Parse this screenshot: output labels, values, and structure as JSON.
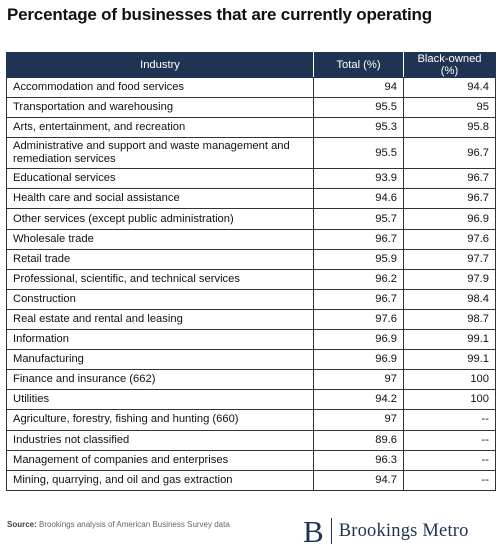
{
  "title": "Percentage of businesses that are currently operating",
  "chart_data": {
    "type": "table",
    "title": "Percentage of businesses that are currently operating",
    "columns": [
      "Industry",
      "Total (%)",
      "Black-owned (%)"
    ],
    "rows": [
      {
        "industry": "Accommodation and food services",
        "total": "94",
        "black_owned": "94.4"
      },
      {
        "industry": "Transportation and warehousing",
        "total": "95.5",
        "black_owned": "95"
      },
      {
        "industry": "Arts, entertainment, and recreation",
        "total": "95.3",
        "black_owned": "95.8"
      },
      {
        "industry": "Administrative and support and waste management and remediation services",
        "total": "95.5",
        "black_owned": "96.7"
      },
      {
        "industry": "Educational services",
        "total": "93.9",
        "black_owned": "96.7"
      },
      {
        "industry": "Health care and social assistance",
        "total": "94.6",
        "black_owned": "96.7"
      },
      {
        "industry": "Other services (except public administration)",
        "total": "95.7",
        "black_owned": "96.9"
      },
      {
        "industry": "Wholesale trade",
        "total": "96.7",
        "black_owned": "97.6"
      },
      {
        "industry": "Retail trade",
        "total": "95.9",
        "black_owned": "97.7"
      },
      {
        "industry": "Professional, scientific, and technical services",
        "total": "96.2",
        "black_owned": "97.9"
      },
      {
        "industry": "Construction",
        "total": "96.7",
        "black_owned": "98.4"
      },
      {
        "industry": "Real estate and rental and leasing",
        "total": "97.6",
        "black_owned": "98.7"
      },
      {
        "industry": "Information",
        "total": "96.9",
        "black_owned": "99.1"
      },
      {
        "industry": "Manufacturing",
        "total": "96.9",
        "black_owned": "99.1"
      },
      {
        "industry": "Finance and insurance (662)",
        "total": "97",
        "black_owned": "100"
      },
      {
        "industry": "Utilities",
        "total": "94.2",
        "black_owned": "100"
      },
      {
        "industry": "Agriculture, forestry, fishing and hunting (660)",
        "total": "97",
        "black_owned": "--"
      },
      {
        "industry": "Industries not classified",
        "total": "89.6",
        "black_owned": "--"
      },
      {
        "industry": "Management of companies and enterprises",
        "total": "96.3",
        "black_owned": "--"
      },
      {
        "industry": "Mining, quarrying, and oil and gas extraction",
        "total": "94.7",
        "black_owned": "--"
      }
    ]
  },
  "footer": {
    "source_label": "Source:",
    "source_text": "Brookings analysis of American Business Survey data",
    "logo_letter": "B",
    "logo_text": "Brookings Metro"
  },
  "colors": {
    "header_bg": "#1e3452",
    "brand": "#1e3452"
  }
}
